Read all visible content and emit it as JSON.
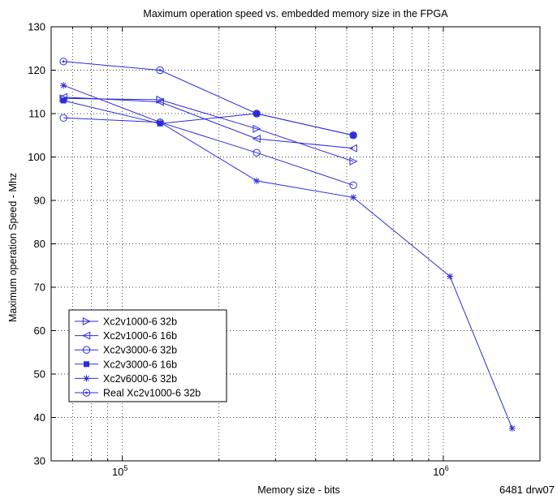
{
  "chart_data": {
    "type": "line",
    "title": "Maximum operation speed vs. embedded memory size in the FPGA",
    "xlabel": "Memory size - bits",
    "ylabel": "Maximum operation Speed - Mhz",
    "x_scale": "log",
    "xlim": [
      60000,
      2000000
    ],
    "ylim": [
      30,
      130
    ],
    "y_ticks": [
      30,
      40,
      50,
      60,
      70,
      80,
      90,
      100,
      110,
      120,
      130
    ],
    "x_tick_labels": [
      {
        "base": "10",
        "exp": "5",
        "value": 100000
      },
      {
        "base": "10",
        "exp": "6",
        "value": 1000000
      }
    ],
    "grid": true,
    "legend_position": "bottom-left",
    "color": "#2b2bdc",
    "series": [
      {
        "name": "Xc2v1000-6 32b",
        "marker": "triangle-right",
        "x": [
          65536,
          131072,
          262144,
          524288
        ],
        "y": [
          113.5,
          113.2,
          106.5,
          99.0
        ]
      },
      {
        "name": "Xc2v1000-6 16b",
        "marker": "triangle-left",
        "x": [
          65536,
          131072,
          262144,
          524288
        ],
        "y": [
          113.8,
          112.7,
          104.2,
          102.0
        ]
      },
      {
        "name": "Xc2v3000-6 32b",
        "marker": "circle",
        "x": [
          65536,
          131072,
          262144,
          524288
        ],
        "y": [
          109.0,
          108.0,
          101.0,
          93.5
        ]
      },
      {
        "name": "Xc2v3000-6 16b",
        "marker": "square",
        "x": [
          65536,
          131072,
          262144,
          524288
        ],
        "y": [
          113.0,
          107.7,
          110.0,
          105.0
        ]
      },
      {
        "name": "Xc2v6000-6 32b",
        "marker": "star",
        "x": [
          65536,
          131072,
          262144,
          524288,
          1048576,
          1638400
        ],
        "y": [
          116.5,
          108.0,
          94.5,
          90.7,
          72.5,
          37.5
        ]
      },
      {
        "name": "Real Xc2v1000-6 32b",
        "marker": "circle-dot",
        "x": [
          65536,
          131072,
          262144,
          524288
        ],
        "y": [
          122.0,
          120.0,
          110.0,
          105.0
        ]
      }
    ]
  },
  "footnote": "6481 drw07"
}
